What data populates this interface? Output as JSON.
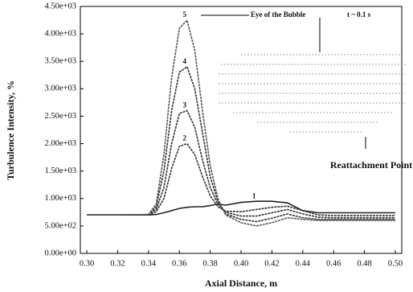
{
  "chart_data": {
    "type": "line",
    "x_label": "Axial Distance, m",
    "y_label": "Turbulence Intensity, %",
    "annotations": [
      "Eye of the Bubble",
      "t ~ 0.1 s",
      "Reattachment Point"
    ],
    "x": [
      0.3,
      0.32,
      0.34,
      0.345,
      0.35,
      0.355,
      0.36,
      0.365,
      0.37,
      0.375,
      0.38,
      0.385,
      0.39,
      0.4,
      0.41,
      0.42,
      0.43,
      0.44,
      0.45,
      0.46,
      0.48,
      0.5
    ],
    "series": [
      {
        "name": "1",
        "color": "#222222",
        "values": [
          700,
          700,
          700,
          710,
          740,
          780,
          820,
          840,
          850,
          850,
          870,
          900,
          880,
          930,
          950,
          950,
          920,
          780,
          740,
          740,
          740,
          740
        ]
      },
      {
        "name": "2",
        "color": "#333333",
        "values": [
          700,
          700,
          705,
          760,
          1000,
          1550,
          1950,
          2000,
          1800,
          1400,
          1050,
          850,
          770,
          760,
          800,
          840,
          860,
          780,
          700,
          690,
          690,
          690
        ]
      },
      {
        "name": "3",
        "color": "#333333",
        "values": [
          700,
          700,
          705,
          800,
          1200,
          2000,
          2550,
          2600,
          2300,
          1700,
          1200,
          900,
          750,
          680,
          680,
          740,
          800,
          720,
          660,
          650,
          650,
          650
        ]
      },
      {
        "name": "4",
        "color": "#333333",
        "values": [
          700,
          700,
          710,
          850,
          1500,
          2600,
          3300,
          3400,
          3000,
          2200,
          1400,
          950,
          720,
          620,
          580,
          640,
          720,
          650,
          620,
          620,
          620,
          620
        ]
      },
      {
        "name": "5",
        "color": "#555555",
        "values": [
          700,
          700,
          710,
          900,
          1800,
          3200,
          4100,
          4250,
          3700,
          2600,
          1600,
          1000,
          700,
          560,
          500,
          560,
          650,
          620,
          600,
          600,
          600,
          600
        ]
      }
    ],
    "xlim": [
      0.3,
      0.5
    ],
    "xticks": [
      {
        "value": 0.3,
        "label": "0.30"
      },
      0.32,
      0.34,
      0.36,
      0.38,
      {
        "value": 0.4,
        "label": "0.40"
      },
      0.42,
      0.44,
      0.46,
      0.48,
      {
        "value": 0.5,
        "label": "0.50"
      }
    ],
    "ylim": [
      0,
      4500
    ],
    "yticks": [
      {
        "value": 0,
        "label": "0.00e+00"
      },
      {
        "value": 500,
        "label": "5.00e+02"
      },
      {
        "value": 1000,
        "label": "1.00e+03"
      },
      {
        "value": 1500,
        "label": "1.50e+03"
      },
      {
        "value": 2000,
        "label": "2.00e+03"
      },
      {
        "value": 2500,
        "label": "2.50e+03"
      },
      {
        "value": 3000,
        "label": "3.00e+03"
      },
      {
        "value": 3500,
        "label": "3.50e+03"
      },
      {
        "value": 4000,
        "label": "4.00e+03"
      },
      {
        "value": 4500,
        "label": "4.50e+03"
      }
    ]
  }
}
